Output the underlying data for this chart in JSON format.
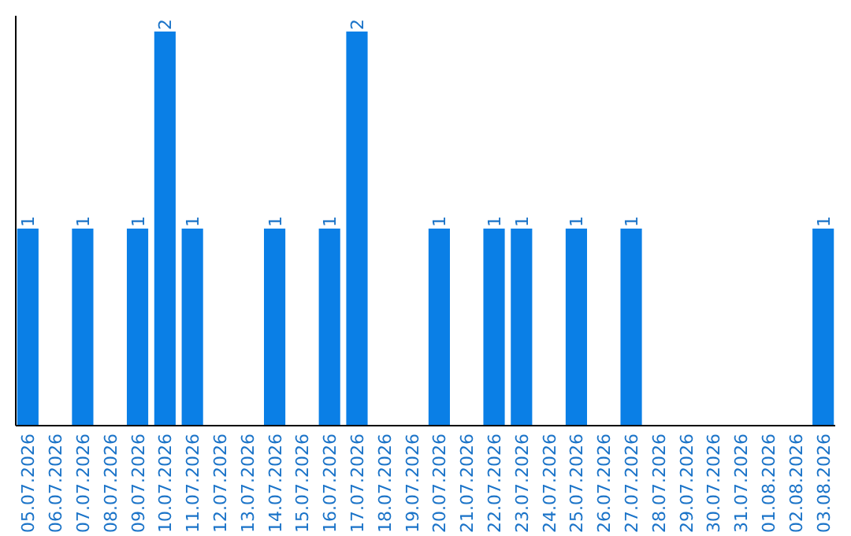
{
  "chart_data": {
    "type": "bar",
    "categories": [
      "05.07.2026",
      "06.07.2026",
      "07.07.2026",
      "08.07.2026",
      "09.07.2026",
      "10.07.2026",
      "11.07.2026",
      "12.07.2026",
      "13.07.2026",
      "14.07.2026",
      "15.07.2026",
      "16.07.2026",
      "17.07.2026",
      "18.07.2026",
      "19.07.2026",
      "20.07.2026",
      "21.07.2026",
      "22.07.2026",
      "23.07.2026",
      "24.07.2026",
      "25.07.2026",
      "26.07.2026",
      "27.07.2026",
      "28.07.2026",
      "29.07.2026",
      "30.07.2026",
      "31.07.2026",
      "01.08.2026",
      "02.08.2026",
      "03.08.2026"
    ],
    "values": [
      1,
      0,
      1,
      0,
      1,
      2,
      1,
      0,
      0,
      1,
      0,
      1,
      2,
      0,
      0,
      1,
      0,
      1,
      1,
      0,
      1,
      0,
      1,
      0,
      0,
      0,
      0,
      0,
      0,
      1
    ],
    "value_labels": [
      "1",
      null,
      "1",
      null,
      "1",
      "2",
      "1",
      null,
      null,
      "1",
      null,
      "1",
      "2",
      null,
      null,
      "1",
      null,
      "1",
      "1",
      null,
      "1",
      null,
      "1",
      null,
      null,
      null,
      null,
      null,
      null,
      "1"
    ],
    "color": "#0a7fe6",
    "tick_labels": "x"
  }
}
